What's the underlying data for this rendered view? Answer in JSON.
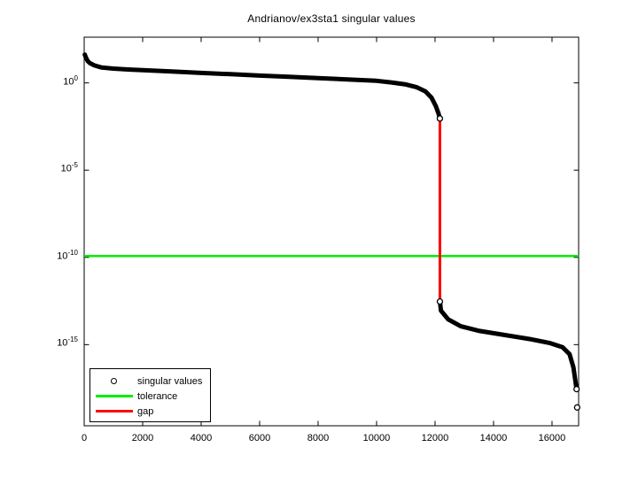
{
  "figure": {
    "background": "#ffffff",
    "axes_box_color": "#000000",
    "text_color": "#000000"
  },
  "chart_data": {
    "type": "line",
    "title": "Andrianov/ex3sta1 singular values",
    "xlabel": "",
    "ylabel": "",
    "grid": false,
    "log_y_axis": true,
    "xlim": [
      0,
      16910
    ],
    "ylim_log10": [
      -19.65,
      2.62
    ],
    "xticks": [
      0,
      2000,
      4000,
      6000,
      8000,
      10000,
      12000,
      14000,
      16000
    ],
    "ytick_exponents": [
      0,
      -5,
      -10,
      -15
    ],
    "legend_position": "lower-left",
    "series": [
      {
        "name": "singular values",
        "color": "#000000",
        "marker": "circle"
      },
      {
        "name": "tolerance",
        "color": "#00ee00",
        "marker": "line"
      },
      {
        "name": "gap",
        "color": "#ff0000",
        "marker": "line"
      }
    ],
    "singular_values": {
      "color": "#000000",
      "upper_branch_log10": [
        [
          20,
          1.62
        ],
        [
          60,
          1.45
        ],
        [
          120,
          1.25
        ],
        [
          200,
          1.13
        ],
        [
          350,
          1.0
        ],
        [
          600,
          0.88
        ],
        [
          1000,
          0.82
        ],
        [
          1500,
          0.77
        ],
        [
          2000,
          0.73
        ],
        [
          3000,
          0.65
        ],
        [
          4000,
          0.57
        ],
        [
          5000,
          0.5
        ],
        [
          6000,
          0.42
        ],
        [
          7000,
          0.35
        ],
        [
          8000,
          0.27
        ],
        [
          9000,
          0.2
        ],
        [
          10000,
          0.12
        ],
        [
          10500,
          0.03
        ],
        [
          11000,
          -0.09
        ],
        [
          11360,
          -0.24
        ],
        [
          11670,
          -0.49
        ],
        [
          11880,
          -0.85
        ],
        [
          12030,
          -1.35
        ],
        [
          12120,
          -1.76
        ],
        [
          12165,
          -2.04
        ]
      ],
      "lower_branch_log10": [
        [
          12166,
          -12.53
        ],
        [
          12200,
          -13.05
        ],
        [
          12450,
          -13.55
        ],
        [
          12880,
          -13.95
        ],
        [
          13480,
          -14.2
        ],
        [
          14390,
          -14.45
        ],
        [
          15300,
          -14.7
        ],
        [
          15910,
          -14.9
        ],
        [
          16360,
          -15.15
        ],
        [
          16600,
          -15.55
        ],
        [
          16730,
          -16.3
        ],
        [
          16800,
          -17.1
        ],
        [
          16840,
          -17.55
        ]
      ],
      "final_point_log10": [
        16860,
        -18.6
      ]
    },
    "tolerance": {
      "value": 1.2e-10,
      "color": "#00ee00"
    },
    "gap": {
      "index": 12165,
      "top_log10": -2.04,
      "bottom_log10": -12.53,
      "color": "#ff0000"
    },
    "legend": {
      "items": [
        {
          "label": "singular values",
          "marker": "circle",
          "color": "#000000"
        },
        {
          "label": "tolerance",
          "marker": "line",
          "color": "#00ee00"
        },
        {
          "label": "gap",
          "marker": "line",
          "color": "#ff0000"
        }
      ]
    }
  }
}
